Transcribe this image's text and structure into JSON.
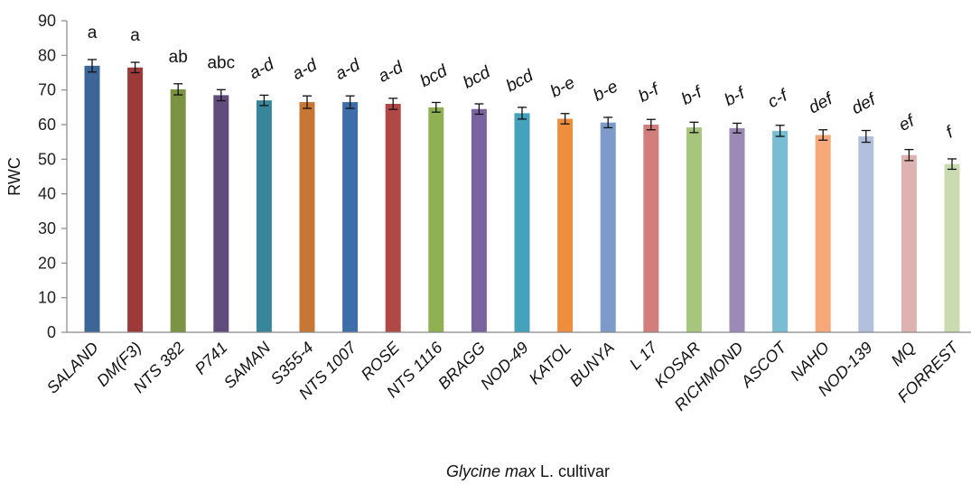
{
  "chart_data": {
    "type": "bar",
    "ylabel": "RWC",
    "xlabel_italic": "Glycine max",
    "xlabel_rest": " L. cultivar",
    "ylim": [
      0,
      90
    ],
    "yticks": [
      0,
      10,
      20,
      30,
      40,
      50,
      60,
      70,
      80,
      90
    ],
    "grid": false,
    "categories": [
      "SALAND",
      "DM(F3)",
      "NTS 382",
      "P741",
      "SAMAN",
      "S355-4",
      "NTS 1007",
      "ROSE",
      "NTS 1116",
      "BRAGG",
      "NOD-49",
      "KATOL",
      "BUNYA",
      "L 17",
      "KOSAR",
      "RICHMOND",
      "ASCOT",
      "NAHO",
      "NOD-139",
      "MQ",
      "FORREST"
    ],
    "values": [
      77,
      76.5,
      70.2,
      68.5,
      67,
      66.5,
      66.5,
      66,
      65,
      64.5,
      63.3,
      61.7,
      60.6,
      60,
      59.2,
      59,
      58.2,
      57,
      56.6,
      51.2,
      48.6
    ],
    "errors": [
      1.8,
      1.5,
      1.6,
      1.6,
      1.5,
      1.8,
      1.8,
      1.6,
      1.4,
      1.5,
      1.7,
      1.5,
      1.5,
      1.5,
      1.5,
      1.4,
      1.6,
      1.5,
      1.7,
      1.6,
      1.5
    ],
    "letters": [
      "a",
      "a",
      "ab",
      "abc",
      "a-d",
      "a-d",
      "a-d",
      "a-d",
      "bcd",
      "bcd",
      "bcd",
      "b-e",
      "b-e",
      "b-f",
      "b-f",
      "b-f",
      "c-f",
      "def",
      "def",
      "ef",
      "f"
    ],
    "colors": [
      "#3c6598",
      "#9b3a38",
      "#7a9443",
      "#614d7d",
      "#39869a",
      "#c87633",
      "#3d6eaa",
      "#b04845",
      "#8fb053",
      "#7a64a0",
      "#45a2bd",
      "#ee8e3d",
      "#7c9bcb",
      "#d17e7c",
      "#a8c57e",
      "#9c8ab6",
      "#79bdd2",
      "#f7a878",
      "#b2bfdd",
      "#deb2b1",
      "#cadbb0"
    ]
  }
}
